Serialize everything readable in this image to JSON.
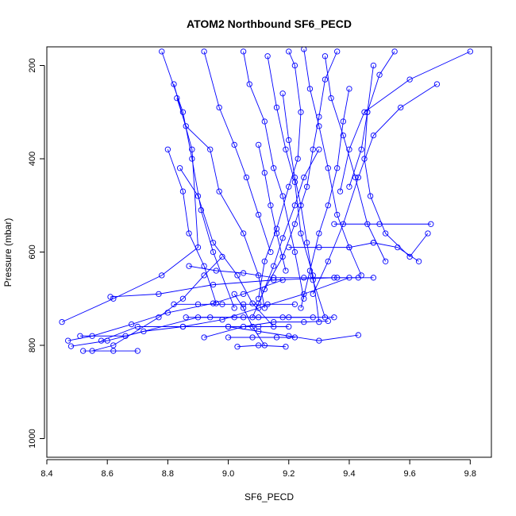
{
  "chart_data": {
    "type": "line",
    "title": "ATOM2 Northbound SF6_PECD",
    "xlabel": "SF6_PECD",
    "ylabel": "Pressure (mbar)",
    "xlim": [
      8.4,
      9.87
    ],
    "ylim": [
      1040,
      160
    ],
    "y_reversed": true,
    "grid": false,
    "x_ticks": [
      8.4,
      8.6,
      8.8,
      9.0,
      9.2,
      9.4,
      9.6,
      9.8
    ],
    "x_tick_labels": [
      "8.4",
      "8.6",
      "8.8",
      "9.0",
      "9.2",
      "9.4",
      "9.6",
      "9.8"
    ],
    "y_ticks": [
      200,
      400,
      600,
      800,
      1000
    ],
    "y_tick_labels": [
      "200",
      "400",
      "600",
      "800",
      "1000"
    ],
    "series_color": "#0000ff",
    "marker": "open-circle",
    "series": [
      {
        "points": [
          [
            8.45,
            750
          ],
          [
            8.62,
            700
          ],
          [
            8.78,
            650
          ],
          [
            8.9,
            590
          ],
          [
            8.88,
            380
          ],
          [
            8.82,
            240
          ]
        ]
      },
      {
        "points": [
          [
            8.47,
            790
          ],
          [
            8.55,
            780
          ],
          [
            8.68,
            755
          ],
          [
            8.8,
            730
          ],
          [
            8.95,
            710
          ],
          [
            9.05,
            690
          ],
          [
            9.18,
            660
          ]
        ]
      },
      {
        "points": [
          [
            8.48,
            802
          ],
          [
            8.6,
            790
          ],
          [
            8.72,
            770
          ],
          [
            8.85,
            760
          ],
          [
            8.98,
            745
          ],
          [
            9.1,
            720
          ],
          [
            9.25,
            690
          ],
          [
            9.4,
            655
          ]
        ]
      },
      {
        "points": [
          [
            8.52,
            812
          ],
          [
            8.62,
            812
          ],
          [
            8.7,
            812
          ]
        ]
      },
      {
        "points": [
          [
            8.55,
            812
          ],
          [
            8.62,
            800
          ],
          [
            8.77,
            740
          ],
          [
            8.85,
            700
          ],
          [
            8.92,
            650
          ],
          [
            8.98,
            610
          ]
        ]
      },
      {
        "points": [
          [
            8.58,
            790
          ],
          [
            8.7,
            760
          ],
          [
            8.85,
            760
          ],
          [
            9.0,
            760
          ],
          [
            9.1,
            760
          ],
          [
            9.2,
            760
          ]
        ]
      },
      {
        "points": [
          [
            8.51,
            780
          ],
          [
            8.66,
            780
          ],
          [
            8.9,
            740
          ],
          [
            9.05,
            740
          ],
          [
            9.2,
            740
          ],
          [
            9.35,
            740
          ]
        ]
      },
      {
        "points": [
          [
            8.61,
            696
          ],
          [
            8.77,
            690
          ],
          [
            8.95,
            670
          ],
          [
            9.15,
            660
          ],
          [
            9.35,
            655
          ],
          [
            9.48,
            655
          ]
        ]
      },
      {
        "points": [
          [
            8.78,
            170
          ],
          [
            8.85,
            300
          ],
          [
            8.88,
            400
          ],
          [
            8.91,
            510
          ],
          [
            8.95,
            600
          ],
          [
            9.02,
            720
          ]
        ]
      },
      {
        "points": [
          [
            8.83,
            270
          ],
          [
            8.86,
            330
          ],
          [
            8.94,
            380
          ],
          [
            8.97,
            470
          ],
          [
            9.05,
            560
          ],
          [
            9.1,
            650
          ],
          [
            9.12,
            720
          ]
        ]
      },
      {
        "points": [
          [
            8.8,
            380
          ],
          [
            8.85,
            470
          ],
          [
            8.87,
            560
          ],
          [
            8.92,
            630
          ],
          [
            8.96,
            710
          ]
        ]
      },
      {
        "points": [
          [
            8.84,
            420
          ],
          [
            8.9,
            480
          ],
          [
            8.95,
            580
          ],
          [
            9.03,
            650
          ],
          [
            9.08,
            710
          ],
          [
            9.15,
            760
          ]
        ]
      },
      {
        "points": [
          [
            8.92,
            170
          ],
          [
            8.97,
            290
          ],
          [
            9.02,
            370
          ],
          [
            9.06,
            440
          ],
          [
            9.1,
            520
          ],
          [
            9.14,
            600
          ]
        ]
      },
      {
        "points": [
          [
            9.05,
            170
          ],
          [
            9.07,
            240
          ],
          [
            9.12,
            320
          ],
          [
            9.15,
            420
          ],
          [
            9.18,
            480
          ],
          [
            9.22,
            600
          ],
          [
            9.25,
            700
          ]
        ]
      },
      {
        "points": [
          [
            9.13,
            180
          ],
          [
            9.16,
            290
          ],
          [
            9.19,
            380
          ],
          [
            9.22,
            450
          ],
          [
            9.24,
            560
          ],
          [
            9.28,
            650
          ],
          [
            9.3,
            750
          ]
        ]
      },
      {
        "points": [
          [
            9.25,
            165
          ],
          [
            9.27,
            250
          ],
          [
            9.3,
            330
          ],
          [
            9.33,
            420
          ],
          [
            9.36,
            520
          ],
          [
            9.4,
            590
          ],
          [
            9.44,
            650
          ]
        ]
      },
      {
        "points": [
          [
            9.32,
            180
          ],
          [
            9.34,
            270
          ],
          [
            9.38,
            350
          ],
          [
            9.42,
            440
          ],
          [
            9.46,
            540
          ],
          [
            9.52,
            620
          ]
        ]
      },
      {
        "points": [
          [
            9.48,
            200
          ],
          [
            9.46,
            300
          ],
          [
            9.45,
            400
          ],
          [
            9.47,
            480
          ],
          [
            9.52,
            560
          ],
          [
            9.6,
            610
          ],
          [
            9.66,
            560
          ]
        ]
      },
      {
        "points": [
          [
            9.69,
            240
          ],
          [
            9.57,
            290
          ],
          [
            9.48,
            350
          ],
          [
            9.43,
            440
          ],
          [
            9.38,
            540
          ],
          [
            9.33,
            620
          ],
          [
            9.28,
            690
          ]
        ]
      },
      {
        "points": [
          [
            9.48,
            580
          ],
          [
            9.56,
            590
          ],
          [
            9.63,
            620
          ]
        ]
      },
      {
        "points": [
          [
            9.35,
            540
          ],
          [
            9.5,
            540
          ],
          [
            9.67,
            540
          ]
        ]
      },
      {
        "points": [
          [
            9.2,
            590
          ],
          [
            9.3,
            590
          ],
          [
            9.4,
            590
          ],
          [
            9.48,
            580
          ]
        ]
      },
      {
        "points": [
          [
            9.0,
            760
          ],
          [
            9.1,
            770
          ],
          [
            9.2,
            780
          ],
          [
            9.3,
            790
          ],
          [
            9.43,
            778
          ]
        ]
      },
      {
        "points": [
          [
            9.03,
            803
          ],
          [
            9.1,
            800
          ],
          [
            9.19,
            803
          ]
        ]
      },
      {
        "points": [
          [
            9.0,
            783
          ],
          [
            9.08,
            783
          ],
          [
            9.16,
            783
          ],
          [
            9.22,
            783
          ]
        ]
      },
      {
        "points": [
          [
            9.02,
            690
          ],
          [
            9.05,
            720
          ],
          [
            9.08,
            760
          ],
          [
            9.12,
            800
          ]
        ]
      },
      {
        "points": [
          [
            9.2,
            170
          ],
          [
            9.22,
            200
          ],
          [
            9.24,
            300
          ],
          [
            9.23,
            400
          ],
          [
            9.2,
            460
          ],
          [
            9.16,
            550
          ],
          [
            9.12,
            620
          ],
          [
            9.1,
            700
          ]
        ]
      },
      {
        "points": [
          [
            9.18,
            260
          ],
          [
            9.2,
            360
          ],
          [
            9.22,
            440
          ],
          [
            9.24,
            500
          ],
          [
            9.26,
            580
          ],
          [
            9.28,
            660
          ],
          [
            9.32,
            740
          ]
        ]
      },
      {
        "points": [
          [
            9.4,
            250
          ],
          [
            9.38,
            320
          ],
          [
            9.36,
            420
          ],
          [
            9.33,
            500
          ],
          [
            9.3,
            560
          ],
          [
            9.27,
            640
          ],
          [
            9.24,
            720
          ]
        ]
      },
      {
        "points": [
          [
            9.3,
            380
          ],
          [
            9.25,
            440
          ],
          [
            9.22,
            500
          ],
          [
            9.18,
            570
          ],
          [
            9.15,
            630
          ],
          [
            9.1,
            710
          ]
        ]
      },
      {
        "points": [
          [
            9.36,
            170
          ],
          [
            9.32,
            230
          ],
          [
            9.3,
            310
          ],
          [
            9.28,
            380
          ],
          [
            9.26,
            460
          ],
          [
            9.22,
            540
          ],
          [
            9.18,
            610
          ],
          [
            9.12,
            680
          ],
          [
            9.08,
            740
          ]
        ]
      },
      {
        "points": [
          [
            9.1,
            370
          ],
          [
            9.12,
            430
          ],
          [
            9.14,
            500
          ],
          [
            9.16,
            560
          ],
          [
            9.19,
            640
          ]
        ]
      },
      {
        "points": [
          [
            8.87,
            630
          ],
          [
            8.96,
            640
          ],
          [
            9.05,
            645
          ],
          [
            9.15,
            655
          ],
          [
            9.25,
            655
          ],
          [
            9.36,
            655
          ],
          [
            9.43,
            655
          ]
        ]
      },
      {
        "points": [
          [
            8.82,
            712
          ],
          [
            8.9,
            712
          ],
          [
            8.98,
            712
          ],
          [
            9.05,
            712
          ],
          [
            9.13,
            712
          ],
          [
            9.22,
            712
          ]
        ]
      },
      {
        "points": [
          [
            8.86,
            740
          ],
          [
            8.94,
            740
          ],
          [
            9.02,
            740
          ],
          [
            9.1,
            740
          ],
          [
            9.18,
            740
          ],
          [
            9.28,
            740
          ]
        ]
      },
      {
        "points": [
          [
            8.92,
            783
          ],
          [
            9.05,
            760
          ],
          [
            9.15,
            750
          ],
          [
            9.25,
            750
          ],
          [
            9.33,
            748
          ]
        ]
      },
      {
        "points": [
          [
            9.4,
            460
          ],
          [
            9.44,
            380
          ],
          [
            9.46,
            300
          ],
          [
            9.5,
            220
          ],
          [
            9.55,
            170
          ]
        ]
      },
      {
        "points": [
          [
            9.8,
            170
          ],
          [
            9.6,
            230
          ],
          [
            9.45,
            300
          ],
          [
            9.4,
            380
          ],
          [
            9.37,
            470
          ]
        ]
      }
    ]
  }
}
